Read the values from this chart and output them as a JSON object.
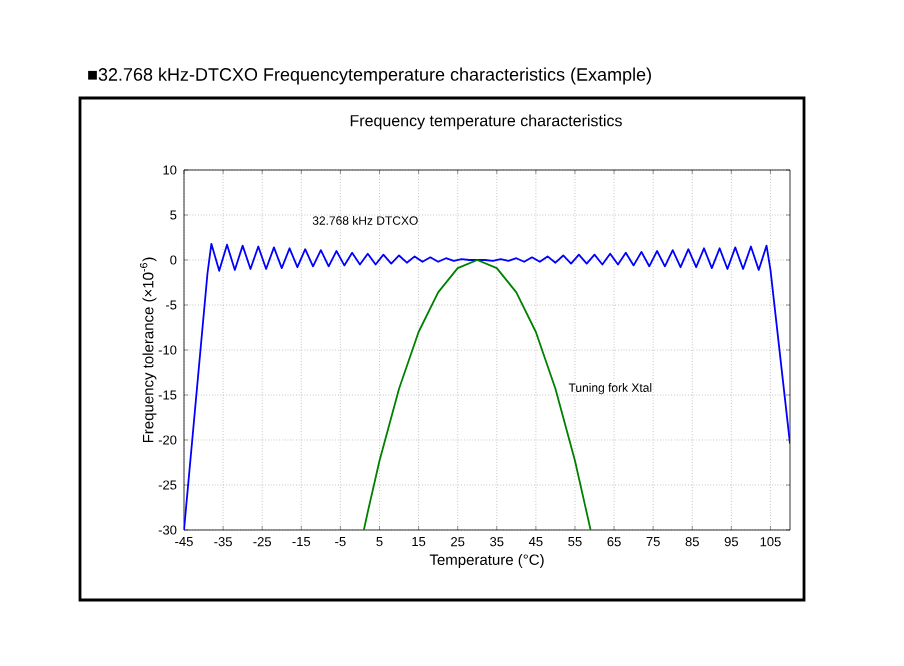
{
  "chart_data": {
    "type": "line",
    "title": "■32.768 kHz-DTCXO Frequencytemperature characteristics (Example)",
    "subtitle": "Frequency temperature characteristics",
    "xlabel": "Temperature (°C)",
    "ylabel": "Frequency tolerance (×10$^{-6}$)",
    "series": [
      {
        "name": "32.768 kHz DTCXO",
        "color": "#0000ff",
        "x": [
          -45,
          -39,
          -38,
          -36,
          -34,
          -32,
          -30,
          -28,
          -26,
          -24,
          -22,
          -20,
          -18,
          -16,
          -14,
          -12,
          -10,
          -8,
          -6,
          -4,
          -2,
          0,
          2,
          4,
          6,
          8,
          10,
          12,
          14,
          16,
          18,
          20,
          22,
          24,
          26,
          28,
          30,
          32,
          34,
          36,
          38,
          40,
          42,
          44,
          46,
          48,
          50,
          52,
          54,
          56,
          58,
          60,
          62,
          64,
          66,
          68,
          70,
          72,
          74,
          76,
          78,
          80,
          82,
          84,
          86,
          88,
          90,
          92,
          94,
          96,
          98,
          100,
          102,
          104,
          105,
          110
        ],
        "values": [
          -30,
          -1.5,
          1.8,
          -1.2,
          1.7,
          -1.1,
          1.6,
          -1.0,
          1.5,
          -1.0,
          1.4,
          -0.9,
          1.3,
          -0.8,
          1.2,
          -0.7,
          1.1,
          -0.7,
          1.0,
          -0.6,
          0.8,
          -0.5,
          0.7,
          -0.5,
          0.6,
          -0.4,
          0.5,
          -0.3,
          0.4,
          -0.2,
          0.3,
          -0.2,
          0.2,
          -0.1,
          0.1,
          0,
          0,
          0,
          -0.1,
          0.1,
          -0.1,
          0.2,
          -0.2,
          0.3,
          -0.2,
          0.4,
          -0.3,
          0.5,
          -0.4,
          0.6,
          -0.4,
          0.6,
          -0.5,
          0.7,
          -0.5,
          0.8,
          -0.6,
          0.9,
          -0.7,
          1.0,
          -0.7,
          1.1,
          -0.8,
          1.2,
          -0.8,
          1.3,
          -0.9,
          1.3,
          -1.0,
          1.4,
          -1.0,
          1.5,
          -1.1,
          1.6,
          -1.1,
          -20.4
        ]
      },
      {
        "name": "Tuning fork Xtal",
        "color": "#008000",
        "x": [
          1,
          2,
          5,
          10,
          15,
          20,
          25,
          30,
          35,
          40,
          45,
          50,
          55,
          59
        ],
        "values": [
          -30,
          -28.0,
          -22.3,
          -14.3,
          -8.0,
          -3.6,
          -0.9,
          0,
          -0.9,
          -3.6,
          -8.0,
          -14.3,
          -22.3,
          -30
        ]
      }
    ],
    "xlim": [
      -45,
      110
    ],
    "xticks": [
      -45,
      -35,
      -25,
      -15,
      -5,
      5,
      15,
      25,
      35,
      45,
      55,
      65,
      75,
      85,
      95,
      105
    ],
    "ylim": [
      -30,
      10
    ],
    "yticks": [
      -30,
      -25,
      -20,
      -15,
      -10,
      -5,
      0,
      5,
      10
    ],
    "grid": true,
    "legend": false,
    "marker": "none",
    "line_style": "solid"
  }
}
